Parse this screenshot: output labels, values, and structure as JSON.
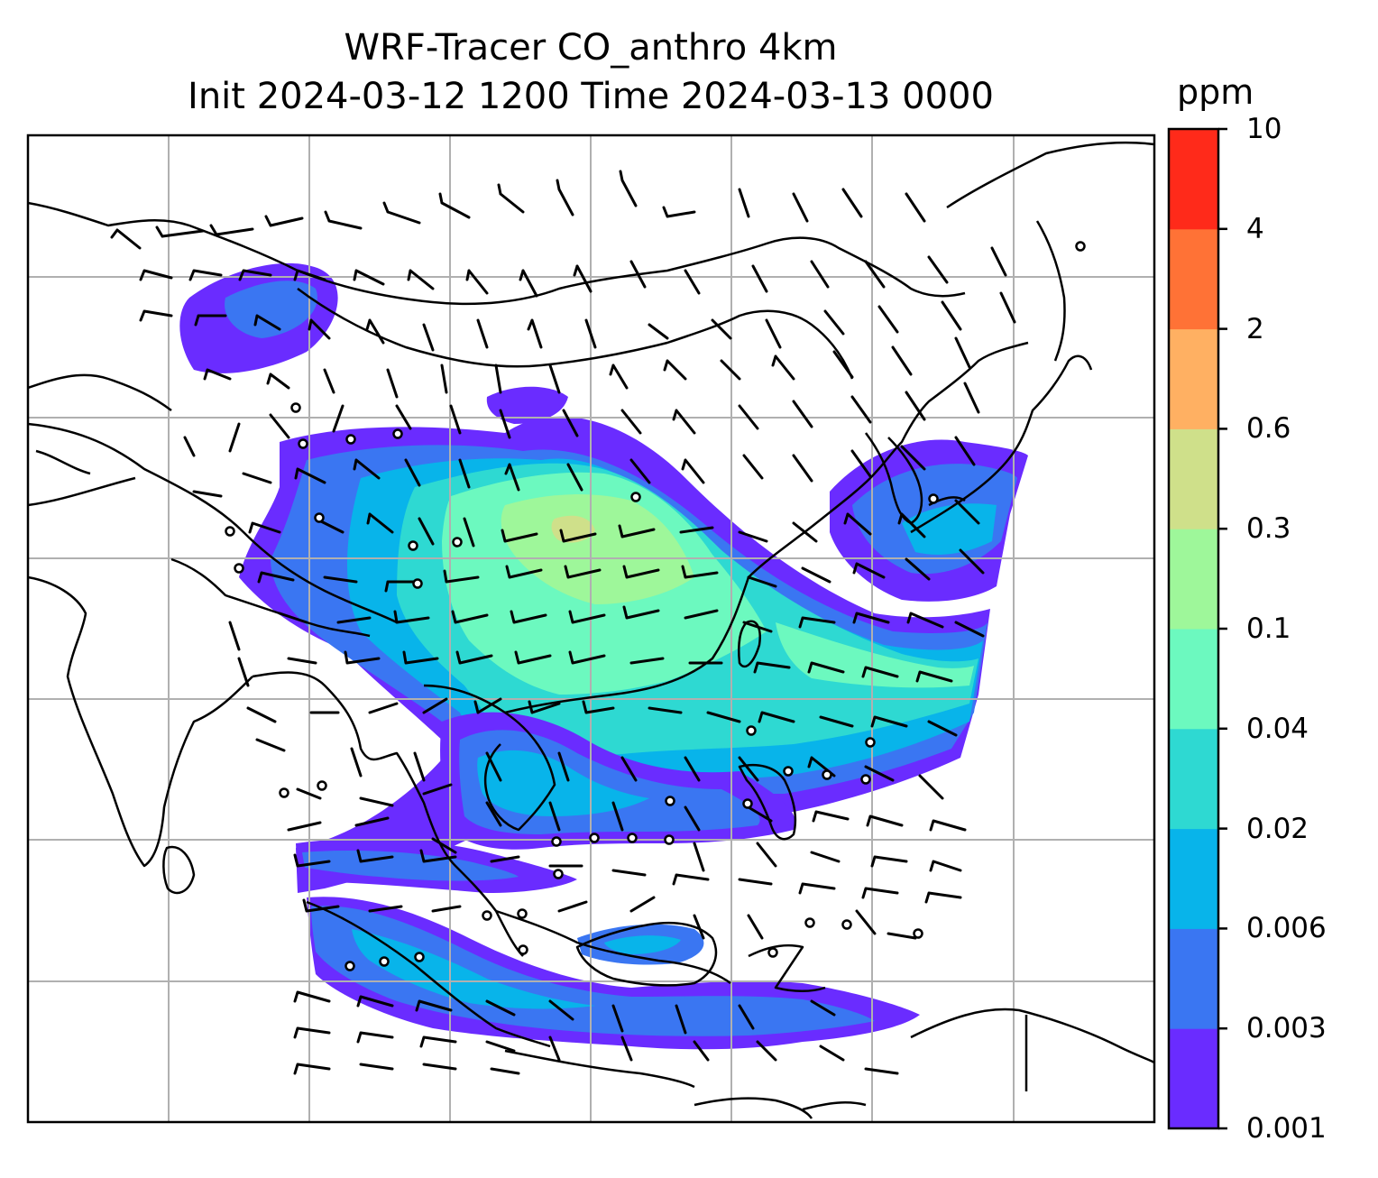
{
  "title": {
    "line1": "WRF-Tracer CO_anthro 4km",
    "line2": "Init 2024-03-12 1200 Time 2024-03-13 0000"
  },
  "colorbar": {
    "unit": "ppm",
    "levels": [
      "0.001",
      "0.003",
      "0.006",
      "0.02",
      "0.04",
      "0.1",
      "0.3",
      "0.6",
      "2",
      "4",
      "10"
    ],
    "colors": [
      "#6a2cff",
      "#3a76f2",
      "#08b4ea",
      "#2ed9d2",
      "#6cf9bf",
      "#9ef79a",
      "#cfe08a",
      "#ffb062",
      "#ff7236",
      "#ff2a1a"
    ]
  },
  "map": {
    "gridlines": true,
    "field": "CO_anthro tracer",
    "wind": "barbs"
  }
}
